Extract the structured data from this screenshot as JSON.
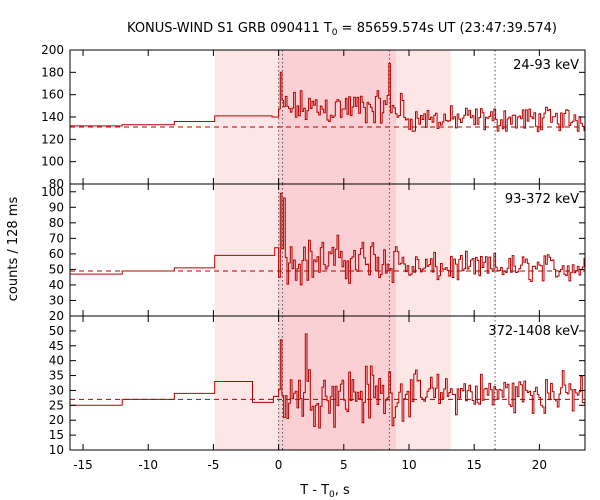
{
  "title_main": "KONUS-WIND S1 GRB 090411 T",
  "title_sub": "0",
  "title_rest": " = 85659.574s UT (23:47:39.574)",
  "ylabel": "counts / 128 ms",
  "xlabel_main": "T - T",
  "xlabel_sub": "0",
  "xlabel_rest": ", s",
  "colors": {
    "curve": "#b30000",
    "shade_light": "#fde6e6",
    "shade_mid": "#fbd0d4",
    "frame": "#000000"
  },
  "chart_data": {
    "type": "line",
    "style": "step histogram per energy band",
    "xlim": [
      -16,
      23.5
    ],
    "x_ticks": [
      -15,
      -10,
      -5,
      0,
      5,
      10,
      15,
      20
    ],
    "shaded_intervals": [
      {
        "from": -4.9,
        "to": 13.2,
        "shade": "light"
      },
      {
        "from": 0.0,
        "to": 9.0,
        "shade": "mid"
      }
    ],
    "vertical_markers": [
      0.0,
      0.3,
      8.5,
      16.6
    ],
    "panels": [
      {
        "label": "24-93 keV",
        "ylim": [
          80,
          200
        ],
        "y_ticks": [
          80,
          100,
          120,
          140,
          160,
          180,
          200
        ],
        "background_level": 131,
        "pre_burst_steps": [
          {
            "x0": -16,
            "x1": -12,
            "y": 132
          },
          {
            "x0": -12,
            "x1": -8,
            "y": 133
          },
          {
            "x0": -8,
            "x1": -4.9,
            "y": 136
          },
          {
            "x0": -4.9,
            "x1": -0.5,
            "y": 141
          },
          {
            "x0": -0.5,
            "x1": 0.0,
            "y": 140
          }
        ],
        "burst_mean": 148,
        "burst_amp": 14,
        "post_mean": 138,
        "post_amp": 10,
        "peak_points": [
          {
            "x": 0.1,
            "y": 180
          },
          {
            "x": 8.4,
            "y": 188
          }
        ]
      },
      {
        "label": "93-372 keV",
        "ylim": [
          20,
          105
        ],
        "y_ticks": [
          20,
          30,
          40,
          50,
          60,
          70,
          80,
          90,
          100
        ],
        "background_level": 49,
        "pre_burst_steps": [
          {
            "x0": -16,
            "x1": -12,
            "y": 47
          },
          {
            "x0": -12,
            "x1": -8,
            "y": 49
          },
          {
            "x0": -8,
            "x1": -4.9,
            "y": 51
          },
          {
            "x0": -4.9,
            "x1": -0.3,
            "y": 59
          },
          {
            "x0": -0.3,
            "x1": 0.0,
            "y": 64
          }
        ],
        "burst_mean": 56,
        "burst_amp": 13,
        "post_mean": 51,
        "post_amp": 8,
        "peak_points": [
          {
            "x": 0.1,
            "y": 99
          },
          {
            "x": 0.4,
            "y": 96
          }
        ]
      },
      {
        "label": "372-1408 keV",
        "ylim": [
          10,
          55
        ],
        "y_ticks": [
          10,
          15,
          20,
          25,
          30,
          35,
          40,
          45,
          50
        ],
        "background_level": 27,
        "pre_burst_steps": [
          {
            "x0": -16,
            "x1": -12,
            "y": 25
          },
          {
            "x0": -12,
            "x1": -8,
            "y": 27
          },
          {
            "x0": -8,
            "x1": -4.9,
            "y": 29
          },
          {
            "x0": -4.9,
            "x1": -2.0,
            "y": 33
          },
          {
            "x0": -2.0,
            "x1": -0.4,
            "y": 26
          },
          {
            "x0": -0.4,
            "x1": 0.0,
            "y": 28
          }
        ],
        "burst_mean": 29,
        "burst_amp": 9,
        "post_mean": 29,
        "post_amp": 6,
        "peak_points": [
          {
            "x": 0.1,
            "y": 47
          },
          {
            "x": 2.0,
            "y": 49
          }
        ]
      }
    ]
  }
}
